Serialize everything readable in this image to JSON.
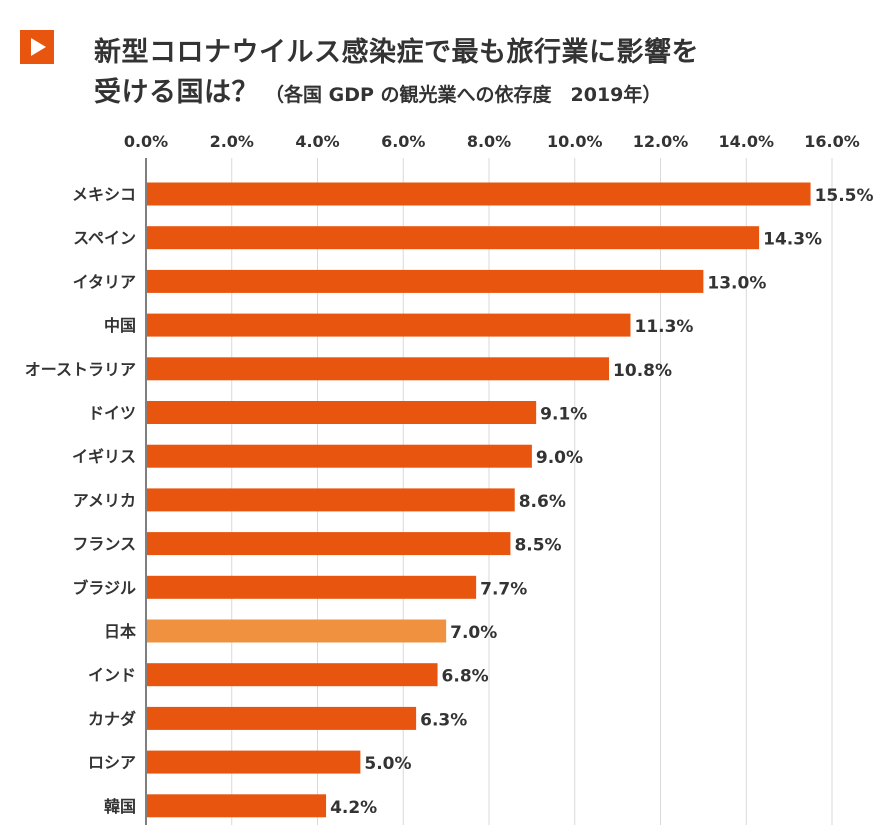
{
  "header": {
    "icon": "play-icon",
    "accent_color": "#e8550f",
    "title_line1": "新型コロナウイルス感染症で最も旅行業に影響を",
    "title_line2_main": "受ける国は？",
    "title_line2_sub": "（各国 GDP の観光業への依存度　2019年）"
  },
  "chart_data": {
    "type": "bar",
    "orientation": "horizontal",
    "categories": [
      "メキシコ",
      "スペイン",
      "イタリア",
      "中国",
      "オーストラリア",
      "ドイツ",
      "イギリス",
      "アメリカ",
      "フランス",
      "ブラジル",
      "日本",
      "インド",
      "カナダ",
      "ロシア",
      "韓国"
    ],
    "values": [
      15.5,
      14.3,
      13.0,
      11.3,
      10.8,
      9.1,
      9.0,
      8.6,
      8.5,
      7.7,
      7.0,
      6.8,
      6.3,
      5.0,
      4.2
    ],
    "value_labels": [
      "15.5%",
      "14.3%",
      "13.0%",
      "11.3%",
      "10.8%",
      "9.1%",
      "9.0%",
      "8.6%",
      "8.5%",
      "7.7%",
      "7.0%",
      "6.8%",
      "6.3%",
      "5.0%",
      "4.2%"
    ],
    "xlim": [
      0,
      16
    ],
    "x_ticks": [
      0,
      2,
      4,
      6,
      8,
      10,
      12,
      14,
      16
    ],
    "x_tick_labels": [
      "0.0%",
      "2.0%",
      "4.0%",
      "6.0%",
      "8.0%",
      "10.0%",
      "12.0%",
      "14.0%",
      "16.0%"
    ],
    "x_axis_position": "top",
    "grid": true,
    "bar_color": "#e8550f",
    "highlight_category": "日本",
    "highlight_color": "#f0913f",
    "grid_color": "#d9d9d9"
  }
}
